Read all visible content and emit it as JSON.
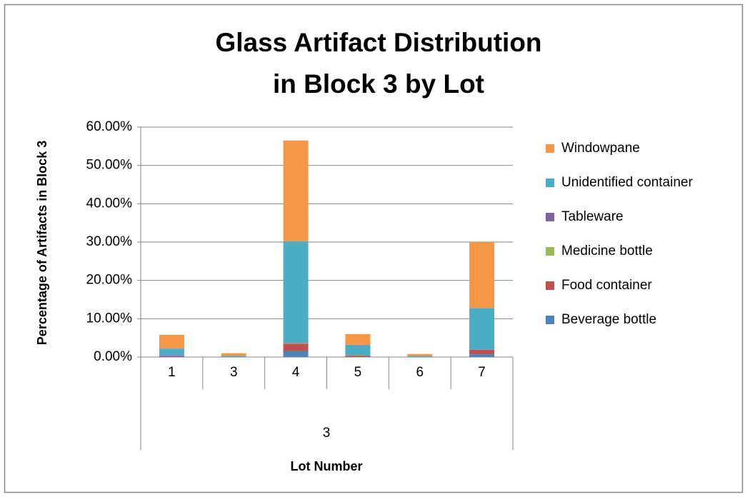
{
  "chart_data": {
    "type": "stacked-bar",
    "title": [
      "Glass Artifact Distribution",
      "in Block 3 by Lot"
    ],
    "x_label": "Lot Number",
    "y_label": "Percentage of Artifacts in Block 3",
    "x_group": "3",
    "categories": [
      "1",
      "3",
      "4",
      "5",
      "6",
      "7"
    ],
    "series": [
      {
        "name": "Beverage bottle",
        "color": "#4f81bd",
        "values": [
          0.3,
          0,
          1.5,
          0.2,
          0,
          0.7
        ]
      },
      {
        "name": "Food container",
        "color": "#c0504d",
        "values": [
          0.1,
          0,
          2.0,
          0.2,
          0,
          1.2
        ]
      },
      {
        "name": "Medicine bottle",
        "color": "#9bbb59",
        "values": [
          0,
          0,
          0.1,
          0,
          0,
          0
        ]
      },
      {
        "name": "Tableware",
        "color": "#8064a2",
        "values": [
          0,
          0,
          0.1,
          0,
          0,
          0.1
        ]
      },
      {
        "name": "Unidentified container",
        "color": "#4bacc6",
        "values": [
          1.8,
          0.3,
          26.5,
          2.8,
          0.3,
          10.8
        ]
      },
      {
        "name": "Windowpane",
        "color": "#f79646",
        "values": [
          3.6,
          0.7,
          26.3,
          2.8,
          0.5,
          17.2
        ]
      }
    ],
    "ylim": [
      0,
      60
    ],
    "yticks": [
      {
        "value": 0,
        "label": "0.00%"
      },
      {
        "value": 10,
        "label": "10.00%"
      },
      {
        "value": 20,
        "label": "20.00%"
      },
      {
        "value": 30,
        "label": "30.00%"
      },
      {
        "value": 40,
        "label": "40.00%"
      },
      {
        "value": 50,
        "label": "50.00%"
      },
      {
        "value": 60,
        "label": "60.00%"
      }
    ],
    "grid": true,
    "legend": "right"
  }
}
